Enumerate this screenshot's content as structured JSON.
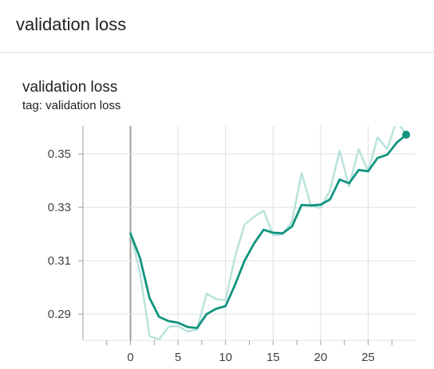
{
  "header": {
    "title": "validation loss"
  },
  "card": {
    "title": "validation loss",
    "tag": "tag: validation loss"
  },
  "colors": {
    "smoothed": "#12947f",
    "raw": "#b9e3dc",
    "grid": "#e0e0e0",
    "axis": "#9e9e9e",
    "zero_line": "#9e9e9e"
  },
  "chart_data": {
    "type": "line",
    "title": "validation loss",
    "xlabel": "",
    "ylabel": "",
    "xlim": [
      -5,
      30
    ],
    "ylim": [
      0.2802,
      0.3605
    ],
    "x_ticks": [
      0,
      5,
      10,
      15,
      20,
      25
    ],
    "y_ticks": [
      0.29,
      0.31,
      0.33,
      0.35
    ],
    "x_tick_labels": [
      "0",
      "5",
      "10",
      "15",
      "20",
      "25"
    ],
    "y_tick_labels": [
      "0.29",
      "0.31",
      "0.33",
      "0.35"
    ],
    "grid": true,
    "series": [
      {
        "role": "raw",
        "x": [
          0,
          1,
          2,
          3,
          4,
          5,
          6,
          7,
          8,
          9,
          10,
          11,
          12,
          13,
          14,
          15,
          16,
          17,
          18,
          19,
          20,
          21,
          22,
          23,
          24,
          25,
          26,
          27,
          28,
          29
        ],
        "values": [
          0.3202,
          0.3055,
          0.2818,
          0.2805,
          0.2852,
          0.2856,
          0.2835,
          0.2842,
          0.2977,
          0.2957,
          0.2952,
          0.3115,
          0.3235,
          0.3265,
          0.3288,
          0.3195,
          0.3198,
          0.3248,
          0.3428,
          0.3305,
          0.3298,
          0.3365,
          0.3512,
          0.3378,
          0.3518,
          0.3435,
          0.3562,
          0.3518,
          0.3625,
          0.3572
        ]
      },
      {
        "role": "smoothed",
        "x": [
          0,
          1,
          2,
          3,
          4,
          5,
          6,
          7,
          8,
          9,
          10,
          11,
          12,
          13,
          14,
          15,
          16,
          17,
          18,
          19,
          20,
          21,
          22,
          23,
          24,
          25,
          26,
          27,
          28,
          29
        ],
        "values": [
          0.3202,
          0.311,
          0.2961,
          0.289,
          0.2874,
          0.2868,
          0.2852,
          0.2848,
          0.29,
          0.292,
          0.293,
          0.301,
          0.31,
          0.3165,
          0.3216,
          0.3205,
          0.3203,
          0.3229,
          0.3309,
          0.3307,
          0.331,
          0.333,
          0.3404,
          0.339,
          0.344,
          0.3435,
          0.3485,
          0.3497,
          0.3542,
          0.3572
        ]
      }
    ]
  }
}
